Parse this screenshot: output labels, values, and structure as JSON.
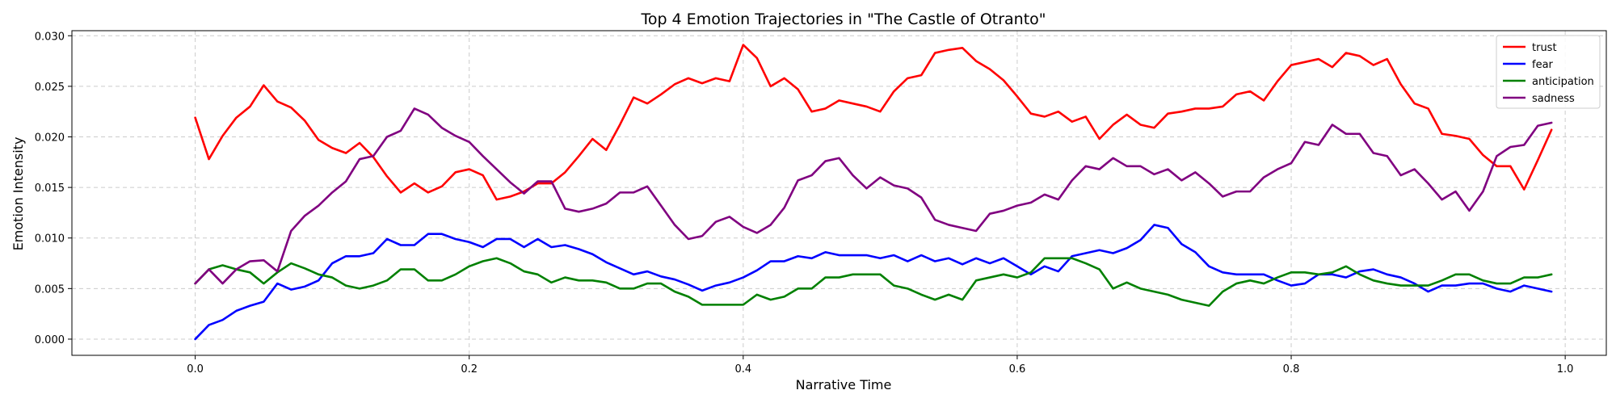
{
  "chart_data": {
    "type": "line",
    "title": "Top 4 Emotion Trajectories in \"The Castle of Otranto\"",
    "xlabel": "Narrative Time",
    "ylabel": "Emotion Intensity",
    "xlim": [
      -0.09,
      1.03
    ],
    "ylim": [
      -0.0016,
      0.0305
    ],
    "xticks": [
      0.0,
      0.2,
      0.4,
      0.6,
      0.8,
      1.0
    ],
    "xtick_labels": [
      "0.0",
      "0.2",
      "0.4",
      "0.6",
      "0.8",
      "1.0"
    ],
    "yticks": [
      0.0,
      0.005,
      0.01,
      0.015,
      0.02,
      0.025,
      0.03
    ],
    "ytick_labels": [
      "0.000",
      "0.005",
      "0.010",
      "0.015",
      "0.020",
      "0.025",
      "0.030"
    ],
    "grid": true,
    "legend_position": "top-right",
    "x": [
      0.0,
      0.01,
      0.02,
      0.03,
      0.04,
      0.05,
      0.06,
      0.07,
      0.08,
      0.09,
      0.1,
      0.11,
      0.12,
      0.13,
      0.14,
      0.15,
      0.16,
      0.17,
      0.18,
      0.19,
      0.2,
      0.21,
      0.22,
      0.23,
      0.24,
      0.25,
      0.26,
      0.27,
      0.28,
      0.29,
      0.3,
      0.31,
      0.32,
      0.33,
      0.34,
      0.35,
      0.36,
      0.37,
      0.38,
      0.39,
      0.4,
      0.41,
      0.42,
      0.43,
      0.44,
      0.45,
      0.46,
      0.47,
      0.48,
      0.49,
      0.5,
      0.51,
      0.52,
      0.53,
      0.54,
      0.55,
      0.56,
      0.57,
      0.58,
      0.59,
      0.6,
      0.61,
      0.62,
      0.63,
      0.64,
      0.65,
      0.66,
      0.67,
      0.68,
      0.69,
      0.7,
      0.71,
      0.72,
      0.73,
      0.74,
      0.75,
      0.76,
      0.77,
      0.78,
      0.79,
      0.8,
      0.81,
      0.82,
      0.83,
      0.84,
      0.85,
      0.86,
      0.87,
      0.88,
      0.89,
      0.9,
      0.91,
      0.92,
      0.93,
      0.94,
      0.95,
      0.96,
      0.97,
      0.98,
      0.99
    ],
    "series": [
      {
        "name": "trust",
        "color": "#ff0000",
        "values": [
          0.0219,
          0.0178,
          0.0201,
          0.0219,
          0.023,
          0.0251,
          0.0235,
          0.0229,
          0.0216,
          0.0197,
          0.0189,
          0.0184,
          0.0194,
          0.018,
          0.0161,
          0.0145,
          0.0154,
          0.0145,
          0.0151,
          0.0165,
          0.0168,
          0.0162,
          0.0138,
          0.0141,
          0.0146,
          0.0154,
          0.0154,
          0.0165,
          0.0181,
          0.0198,
          0.0187,
          0.0212,
          0.0239,
          0.0233,
          0.0242,
          0.0252,
          0.0258,
          0.0253,
          0.0258,
          0.0255,
          0.0291,
          0.0278,
          0.025,
          0.0258,
          0.0247,
          0.0225,
          0.0228,
          0.0236,
          0.0233,
          0.023,
          0.0225,
          0.0245,
          0.0258,
          0.0261,
          0.0283,
          0.0286,
          0.0288,
          0.0275,
          0.0267,
          0.0256,
          0.024,
          0.0223,
          0.022,
          0.0225,
          0.0215,
          0.022,
          0.0198,
          0.0212,
          0.0222,
          0.0212,
          0.0209,
          0.0223,
          0.0225,
          0.0228,
          0.0228,
          0.023,
          0.0242,
          0.0245,
          0.0236,
          0.0255,
          0.0271,
          0.0274,
          0.0277,
          0.0269,
          0.0283,
          0.028,
          0.0271,
          0.0277,
          0.0252,
          0.0233,
          0.0228,
          0.0203,
          0.0201,
          0.0198,
          0.0182,
          0.0171,
          0.0171,
          0.0148,
          0.0177,
          0.0207
        ]
      },
      {
        "name": "fear",
        "color": "#0000ff",
        "values": [
          0.0,
          0.0014,
          0.0019,
          0.0028,
          0.0033,
          0.0037,
          0.0055,
          0.0049,
          0.0052,
          0.0058,
          0.0075,
          0.0082,
          0.0082,
          0.0085,
          0.0099,
          0.0093,
          0.0093,
          0.0104,
          0.0104,
          0.0099,
          0.0096,
          0.0091,
          0.0099,
          0.0099,
          0.0091,
          0.0099,
          0.0091,
          0.0093,
          0.0089,
          0.0084,
          0.0076,
          0.007,
          0.0064,
          0.0067,
          0.0062,
          0.0059,
          0.0054,
          0.0048,
          0.0053,
          0.0056,
          0.0061,
          0.0068,
          0.0077,
          0.0077,
          0.0082,
          0.008,
          0.0086,
          0.0083,
          0.0083,
          0.0083,
          0.008,
          0.0083,
          0.0077,
          0.0083,
          0.0077,
          0.008,
          0.0074,
          0.008,
          0.0075,
          0.008,
          0.0072,
          0.0064,
          0.0072,
          0.0067,
          0.0082,
          0.0085,
          0.0088,
          0.0085,
          0.009,
          0.0098,
          0.0113,
          0.011,
          0.0094,
          0.0086,
          0.0072,
          0.0066,
          0.0064,
          0.0064,
          0.0064,
          0.0058,
          0.0053,
          0.0055,
          0.0064,
          0.0064,
          0.0061,
          0.0067,
          0.0069,
          0.0064,
          0.0061,
          0.0055,
          0.0047,
          0.0053,
          0.0053,
          0.0055,
          0.0055,
          0.005,
          0.0047,
          0.0053,
          0.005,
          0.0047
        ]
      },
      {
        "name": "anticipation",
        "color": "#008000",
        "values": [
          0.0055,
          0.0069,
          0.0073,
          0.0069,
          0.0066,
          0.0055,
          0.0066,
          0.0075,
          0.007,
          0.0064,
          0.0061,
          0.0053,
          0.005,
          0.0053,
          0.0058,
          0.0069,
          0.0069,
          0.0058,
          0.0058,
          0.0064,
          0.0072,
          0.0077,
          0.008,
          0.0075,
          0.0067,
          0.0064,
          0.0056,
          0.0061,
          0.0058,
          0.0058,
          0.0056,
          0.005,
          0.005,
          0.0055,
          0.0055,
          0.0047,
          0.0042,
          0.0034,
          0.0034,
          0.0034,
          0.0034,
          0.0044,
          0.0039,
          0.0042,
          0.005,
          0.005,
          0.0061,
          0.0061,
          0.0064,
          0.0064,
          0.0064,
          0.0053,
          0.005,
          0.0044,
          0.0039,
          0.0044,
          0.0039,
          0.0058,
          0.0061,
          0.0064,
          0.0061,
          0.0066,
          0.008,
          0.008,
          0.008,
          0.0075,
          0.0069,
          0.005,
          0.0056,
          0.005,
          0.0047,
          0.0044,
          0.0039,
          0.0036,
          0.0033,
          0.0047,
          0.0055,
          0.0058,
          0.0055,
          0.0061,
          0.0066,
          0.0066,
          0.0064,
          0.0066,
          0.0072,
          0.0064,
          0.0058,
          0.0055,
          0.0053,
          0.0053,
          0.0053,
          0.0058,
          0.0064,
          0.0064,
          0.0058,
          0.0055,
          0.0055,
          0.0061,
          0.0061,
          0.0064
        ]
      },
      {
        "name": "sadness",
        "color": "#800080",
        "values": [
          0.0055,
          0.0069,
          0.0055,
          0.0069,
          0.0077,
          0.0078,
          0.0067,
          0.0107,
          0.0122,
          0.0132,
          0.0145,
          0.0156,
          0.0178,
          0.0181,
          0.02,
          0.0206,
          0.0228,
          0.0222,
          0.0209,
          0.0201,
          0.0195,
          0.0181,
          0.0168,
          0.0155,
          0.0144,
          0.0156,
          0.0156,
          0.0129,
          0.0126,
          0.0129,
          0.0134,
          0.0145,
          0.0145,
          0.0151,
          0.0132,
          0.0113,
          0.0099,
          0.0102,
          0.0116,
          0.0121,
          0.0111,
          0.0105,
          0.0113,
          0.013,
          0.0157,
          0.0162,
          0.0176,
          0.0179,
          0.0162,
          0.0149,
          0.016,
          0.0152,
          0.0149,
          0.014,
          0.0118,
          0.0113,
          0.011,
          0.0107,
          0.0124,
          0.0127,
          0.0132,
          0.0135,
          0.0143,
          0.0138,
          0.0157,
          0.0171,
          0.0168,
          0.0179,
          0.0171,
          0.0171,
          0.0163,
          0.0168,
          0.0157,
          0.0165,
          0.0154,
          0.0141,
          0.0146,
          0.0146,
          0.016,
          0.0168,
          0.0174,
          0.0195,
          0.0192,
          0.0212,
          0.0203,
          0.0203,
          0.0184,
          0.0181,
          0.0162,
          0.0168,
          0.0154,
          0.0138,
          0.0146,
          0.0127,
          0.0146,
          0.0181,
          0.019,
          0.0192,
          0.0211,
          0.0214
        ]
      }
    ]
  }
}
